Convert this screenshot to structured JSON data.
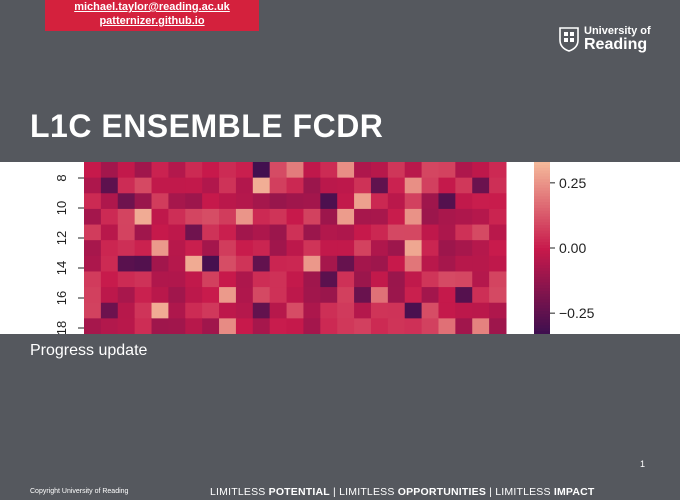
{
  "contact": {
    "email": "michael.taylor@reading.ac.uk",
    "website": "patternizer.github.io"
  },
  "logo": {
    "line1": "University of",
    "line2": "Reading",
    "icon": "university-crest-icon"
  },
  "slide": {
    "title": "L1C ENSEMBLE FCDR",
    "subtitle": "Progress update",
    "page_number": "1"
  },
  "footer": {
    "copyright": "Copyright University of Reading",
    "tagline": [
      {
        "prefix": "LIMITLESS ",
        "bold": "POTENTIAL"
      },
      {
        "prefix": "LIMITLESS ",
        "bold": "OPPORTUNITIES"
      },
      {
        "prefix": "LIMITLESS ",
        "bold": "IMPACT"
      }
    ],
    "separator": " | "
  },
  "colors": {
    "background": "#55585e",
    "contact_bar": "#d4213d",
    "heatmap_low": "#3b0f4f",
    "heatmap_mid": "#c7194b",
    "heatmap_high": "#f4b89a"
  },
  "chart_data": {
    "type": "heatmap",
    "y_tick_labels": [
      "8",
      "10",
      "12",
      "14",
      "16",
      "18"
    ],
    "colorbar_tick_labels": [
      "0.25",
      "0.00",
      "−0.25"
    ],
    "colorbar_ticks": [
      0.25,
      0.0,
      -0.25
    ],
    "value_range": [
      -0.33,
      0.33
    ],
    "cmap": "rocket-like diverging (dark purple → crimson → peach)",
    "visible_rows": 11,
    "visible_cols": 25
  }
}
